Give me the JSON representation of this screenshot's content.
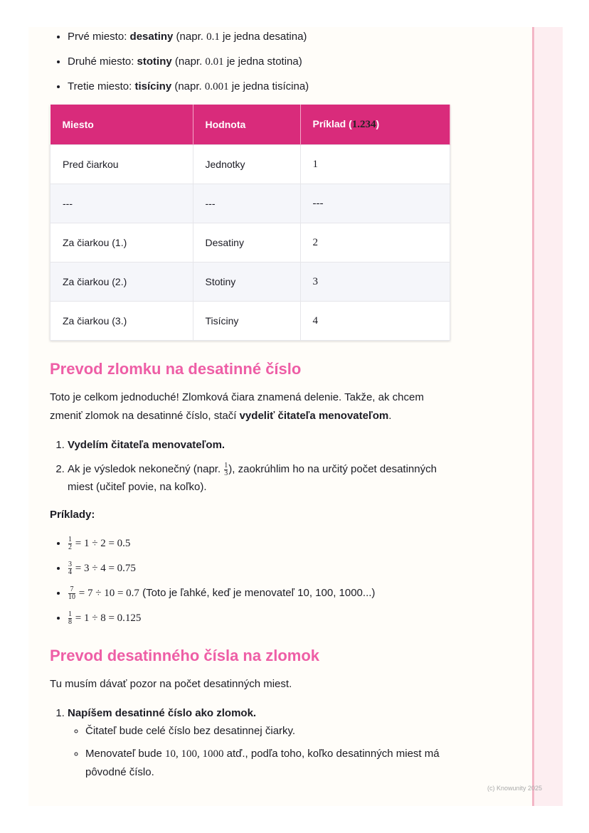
{
  "intro_list": [
    [
      "Prvé miesto: ",
      "desatiny",
      " (napr. ",
      "0.1",
      " je jedna desatina)"
    ],
    [
      "Druhé miesto: ",
      "stotiny",
      " (napr. ",
      "0.01",
      " je jedna stotina)"
    ],
    [
      "Tretie miesto: ",
      "tisíciny",
      " (napr. ",
      "0.001",
      " je jedna tisícina)"
    ]
  ],
  "table": {
    "header": [
      "Miesto",
      "Hodnota",
      [
        "Príklad (",
        "1.234",
        ")"
      ]
    ],
    "rows": [
      [
        "Pred čiarkou",
        "Jednotky",
        "1"
      ],
      [
        "---",
        "---",
        "---"
      ],
      [
        "Za čiarkou (1.)",
        "Desatiny",
        "2"
      ],
      [
        "Za čiarkou (2.)",
        "Stotiny",
        "3"
      ],
      [
        "Za čiarkou (3.)",
        "Tisíciny",
        "4"
      ]
    ]
  },
  "section1": {
    "heading": "Prevod zlomku na desatinné číslo",
    "paragraph": [
      "Toto je celkom jednoduché! Zlomková čiara znamená delenie. Takže, ak chcem zmeniť zlomok na desatinné číslo, stačí ",
      "vydeliť čitateľa menovateľom",
      "."
    ],
    "steps": [
      [
        "Vydelím čitateľa menovateľom."
      ],
      [
        "Ak je výsledok nekonečný (napr. ",
        "1",
        "3",
        "), zaokrúhlim ho na určitý počet desatinných miest (učiteľ povie, na koľko)."
      ]
    ],
    "examples_label": "Príklady:",
    "examples": [
      {
        "num": "1",
        "den": "2",
        "expr": " = 1 ÷ 2 = 0.5"
      },
      {
        "num": "3",
        "den": "4",
        "expr": " = 3 ÷ 4 = 0.75"
      },
      {
        "num": "7",
        "den": "10",
        "expr": " = 7 ÷ 10 = 0.7",
        "note": " (Toto je ľahké, keď je menovateľ 10, 100, 1000...)"
      },
      {
        "num": "1",
        "den": "8",
        "expr": " = 1 ÷ 8 = 0.125"
      }
    ]
  },
  "section2": {
    "heading": "Prevod desatinného čísla na zlomok",
    "paragraph": "Tu musím dávať pozor na počet desatinných miest.",
    "step": "Napíšem desatinné číslo ako zlomok.",
    "substeps": [
      [
        "Čitateľ bude celé číslo bez desatinnej čiarky."
      ],
      [
        "Menovateľ bude ",
        "10, 100, 1000",
        " atď., podľa toho, koľko desatinných miest má pôvodné číslo."
      ]
    ]
  },
  "footer": "(c) Knowunity 2025"
}
